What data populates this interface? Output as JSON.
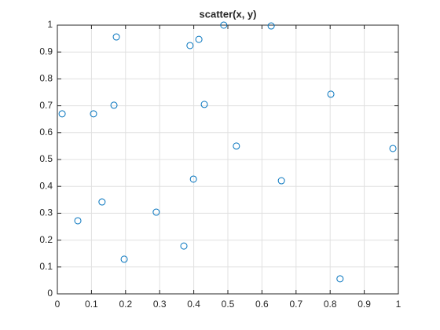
{
  "chart_data": {
    "type": "scatter",
    "title": "scatter(x, y)",
    "x": [
      0.014,
      0.06,
      0.106,
      0.131,
      0.166,
      0.173,
      0.196,
      0.29,
      0.371,
      0.389,
      0.399,
      0.415,
      0.431,
      0.488,
      0.525,
      0.627,
      0.657,
      0.802,
      0.829,
      0.984
    ],
    "values": [
      0.67,
      0.272,
      0.67,
      0.342,
      0.702,
      0.956,
      0.129,
      0.304,
      0.178,
      0.924,
      0.427,
      0.947,
      0.705,
      1.0,
      0.55,
      0.997,
      0.421,
      0.743,
      0.056,
      0.541
    ],
    "color": "#0072bd",
    "xlim": [
      0,
      1
    ],
    "xticks": [
      0,
      0.1,
      0.2,
      0.3,
      0.4,
      0.5,
      0.6,
      0.7,
      0.8,
      0.9,
      1
    ],
    "ylim": [
      0,
      1
    ],
    "yticks": [
      0,
      0.1,
      0.2,
      0.3,
      0.4,
      0.5,
      0.6,
      0.7,
      0.8,
      0.9,
      1
    ],
    "grid": true
  }
}
